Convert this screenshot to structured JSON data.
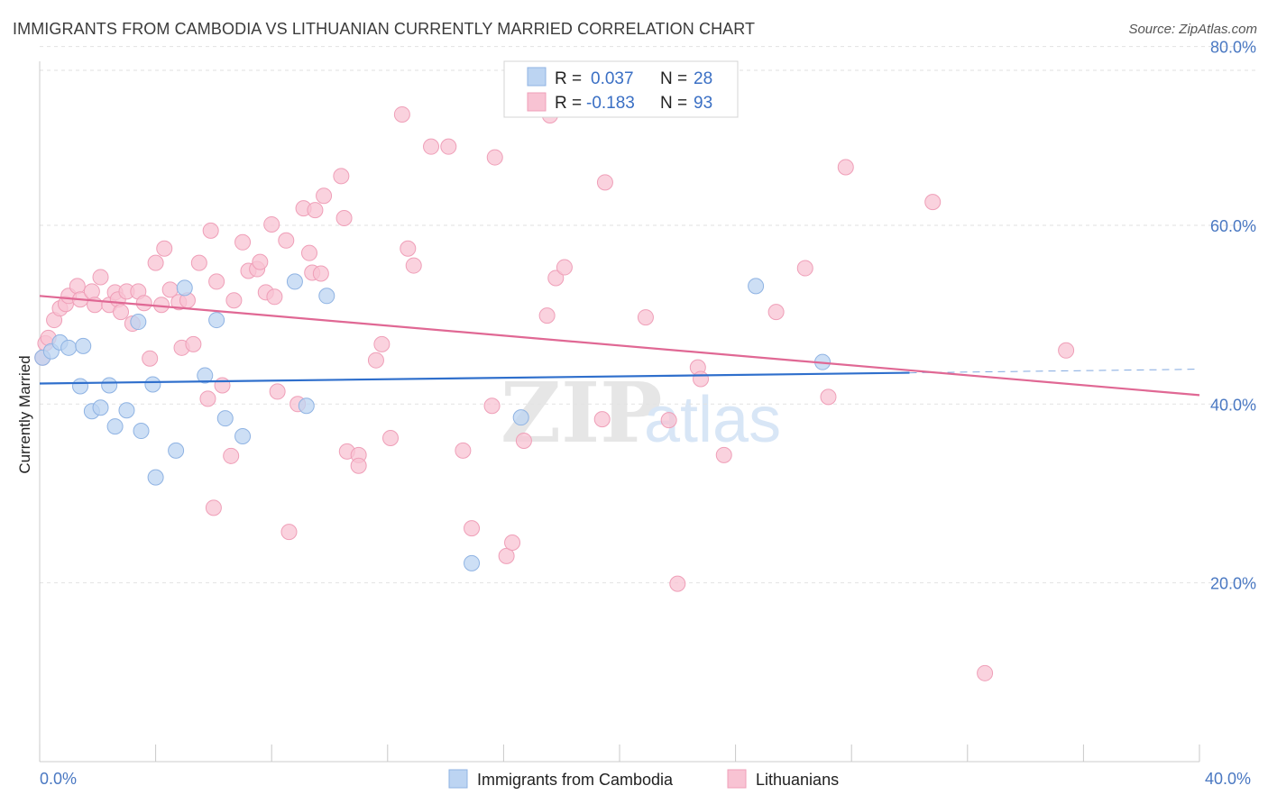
{
  "header": {
    "title": "IMMIGRANTS FROM CAMBODIA VS LITHUANIAN CURRENTLY MARRIED CORRELATION CHART",
    "source": "Source: ZipAtlas.com"
  },
  "chart_data": {
    "type": "scatter",
    "ylabel": "Currently Married",
    "xlim": [
      0,
      40
    ],
    "ylim": [
      0,
      85
    ],
    "x_tick_labels": [
      "0.0%",
      "40.0%"
    ],
    "y_ticks": [
      {
        "value": 20,
        "label": "20.0%"
      },
      {
        "value": 40,
        "label": "40.0%"
      },
      {
        "value": 60,
        "label": "60.0%"
      },
      {
        "value": 80,
        "label": "80.0%"
      }
    ],
    "grid": "horizontal dashed",
    "watermark": {
      "zip": "ZIP",
      "atlas": "atlas"
    },
    "legend": {
      "placement": "top-center",
      "rows": [
        {
          "r_label": "R =",
          "r_value": "0.037",
          "n_label": "N =",
          "n_value": "28"
        },
        {
          "r_label": "R =",
          "r_value": "-0.183",
          "n_label": "N =",
          "n_value": "93"
        }
      ]
    },
    "bottom_legend": [
      "Immigrants from Cambodia",
      "Lithuanians"
    ],
    "colors": {
      "cambodia_fill": "#bcd4f2",
      "cambodia_stroke": "#8fb3e3",
      "cambodia_line": "#2f6fcc",
      "lithuanian_fill": "#f8c3d3",
      "lithuanian_stroke": "#ef9fb8",
      "lithuanian_line": "#e06894"
    },
    "series": [
      {
        "name": "Immigrants from Cambodia",
        "trend": {
          "x0": 0,
          "y0": 42.3,
          "x1": 30,
          "y1": 43.5,
          "dash_to_x": 40,
          "dash_to_y": 43.9
        },
        "points": [
          [
            0.1,
            45.2
          ],
          [
            0.4,
            45.9
          ],
          [
            0.7,
            46.9
          ],
          [
            1.0,
            46.3
          ],
          [
            1.5,
            46.5
          ],
          [
            1.4,
            42.0
          ],
          [
            1.8,
            39.2
          ],
          [
            2.1,
            39.6
          ],
          [
            2.4,
            42.1
          ],
          [
            2.6,
            37.5
          ],
          [
            3.0,
            39.3
          ],
          [
            3.5,
            37.0
          ],
          [
            3.9,
            42.2
          ],
          [
            3.4,
            49.2
          ],
          [
            4.7,
            34.8
          ],
          [
            4.0,
            31.8
          ],
          [
            5.0,
            53.0
          ],
          [
            5.7,
            43.2
          ],
          [
            6.1,
            49.4
          ],
          [
            6.4,
            38.4
          ],
          [
            7.0,
            36.4
          ],
          [
            8.8,
            53.7
          ],
          [
            9.2,
            39.8
          ],
          [
            9.9,
            52.1
          ],
          [
            14.9,
            22.2
          ],
          [
            16.6,
            38.5
          ],
          [
            24.7,
            53.2
          ],
          [
            27.0,
            44.7
          ]
        ]
      },
      {
        "name": "Lithuanians",
        "trend": {
          "x0": 0,
          "y0": 52.1,
          "x1": 40,
          "y1": 41.0
        },
        "points": [
          [
            0.1,
            45.2
          ],
          [
            0.2,
            46.8
          ],
          [
            0.3,
            47.4
          ],
          [
            0.5,
            49.4
          ],
          [
            0.7,
            50.7
          ],
          [
            0.9,
            51.2
          ],
          [
            1.0,
            52.1
          ],
          [
            1.3,
            53.2
          ],
          [
            1.4,
            51.7
          ],
          [
            1.8,
            52.6
          ],
          [
            1.9,
            51.1
          ],
          [
            2.1,
            54.2
          ],
          [
            2.4,
            51.1
          ],
          [
            2.6,
            52.5
          ],
          [
            2.7,
            51.7
          ],
          [
            2.8,
            50.3
          ],
          [
            3.0,
            52.6
          ],
          [
            3.2,
            49.0
          ],
          [
            3.4,
            52.6
          ],
          [
            3.6,
            51.3
          ],
          [
            3.8,
            45.1
          ],
          [
            4.0,
            55.8
          ],
          [
            4.2,
            51.1
          ],
          [
            4.3,
            57.4
          ],
          [
            4.5,
            52.8
          ],
          [
            4.8,
            51.4
          ],
          [
            4.9,
            46.3
          ],
          [
            5.1,
            51.6
          ],
          [
            5.3,
            46.7
          ],
          [
            5.5,
            55.8
          ],
          [
            5.8,
            40.6
          ],
          [
            5.9,
            59.4
          ],
          [
            6.1,
            53.7
          ],
          [
            6.3,
            42.1
          ],
          [
            6.6,
            34.2
          ],
          [
            6.7,
            51.6
          ],
          [
            6.0,
            28.4
          ],
          [
            7.0,
            58.1
          ],
          [
            7.2,
            54.9
          ],
          [
            7.5,
            55.1
          ],
          [
            7.6,
            55.9
          ],
          [
            7.8,
            52.5
          ],
          [
            8.0,
            60.1
          ],
          [
            8.1,
            52.0
          ],
          [
            8.2,
            41.4
          ],
          [
            8.5,
            58.3
          ],
          [
            8.6,
            25.7
          ],
          [
            8.9,
            40.0
          ],
          [
            9.1,
            61.9
          ],
          [
            9.3,
            56.9
          ],
          [
            9.4,
            54.7
          ],
          [
            9.5,
            61.7
          ],
          [
            9.8,
            63.3
          ],
          [
            9.7,
            54.6
          ],
          [
            10.4,
            65.5
          ],
          [
            10.5,
            60.8
          ],
          [
            10.6,
            34.7
          ],
          [
            11.0,
            34.3
          ],
          [
            11.0,
            33.1
          ],
          [
            11.6,
            44.9
          ],
          [
            11.8,
            46.7
          ],
          [
            12.1,
            36.2
          ],
          [
            12.5,
            72.4
          ],
          [
            12.7,
            57.4
          ],
          [
            12.9,
            55.5
          ],
          [
            13.5,
            68.8
          ],
          [
            14.1,
            68.8
          ],
          [
            14.6,
            34.8
          ],
          [
            14.9,
            26.1
          ],
          [
            15.6,
            39.8
          ],
          [
            15.7,
            67.6
          ],
          [
            16.1,
            23.0
          ],
          [
            16.3,
            24.5
          ],
          [
            16.7,
            35.9
          ],
          [
            17.5,
            49.9
          ],
          [
            17.6,
            72.3
          ],
          [
            17.8,
            54.1
          ],
          [
            18.1,
            55.3
          ],
          [
            19.4,
            38.3
          ],
          [
            19.5,
            64.8
          ],
          [
            20.9,
            49.7
          ],
          [
            21.7,
            38.2
          ],
          [
            22.0,
            19.9
          ],
          [
            22.7,
            44.1
          ],
          [
            22.8,
            42.8
          ],
          [
            23.6,
            34.3
          ],
          [
            25.4,
            50.3
          ],
          [
            26.4,
            55.2
          ],
          [
            27.2,
            40.8
          ],
          [
            27.8,
            66.5
          ],
          [
            30.8,
            62.6
          ],
          [
            32.6,
            9.9
          ],
          [
            35.4,
            46.0
          ]
        ]
      }
    ]
  }
}
